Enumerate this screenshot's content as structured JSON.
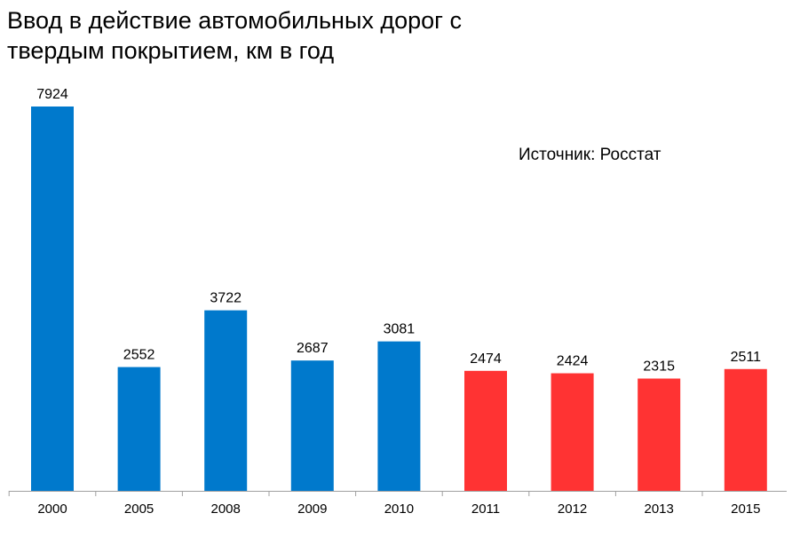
{
  "title_lines": [
    "Ввод в действие автомобильных дорог с",
    "твердым покрытием, км в год"
  ],
  "source_note": "Источник: Росстат",
  "colors": {
    "primary": "#0079CC",
    "highlight": "#FF3333",
    "axis": "#A0A0A0"
  },
  "chart_data": {
    "type": "bar",
    "title": "Ввод в действие автомобильных дорог с твердым покрытием, км в год",
    "categories": [
      "2000",
      "2005",
      "2008",
      "2009",
      "2010",
      "2011",
      "2012",
      "2013",
      "2015"
    ],
    "values": [
      7924,
      2552,
      3722,
      2687,
      3081,
      2474,
      2424,
      2315,
      2511
    ],
    "value_labels": [
      "7924",
      "2552",
      "3722",
      "2687",
      "3081",
      "2474",
      "2424",
      "2315",
      "2511"
    ],
    "bar_colors": [
      "#0079CC",
      "#0079CC",
      "#0079CC",
      "#0079CC",
      "#0079CC",
      "#FF3333",
      "#FF3333",
      "#FF3333",
      "#FF3333"
    ],
    "ylim": [
      0,
      7924
    ],
    "xlabel": "",
    "ylabel": "",
    "grid": false,
    "legend": "none"
  }
}
